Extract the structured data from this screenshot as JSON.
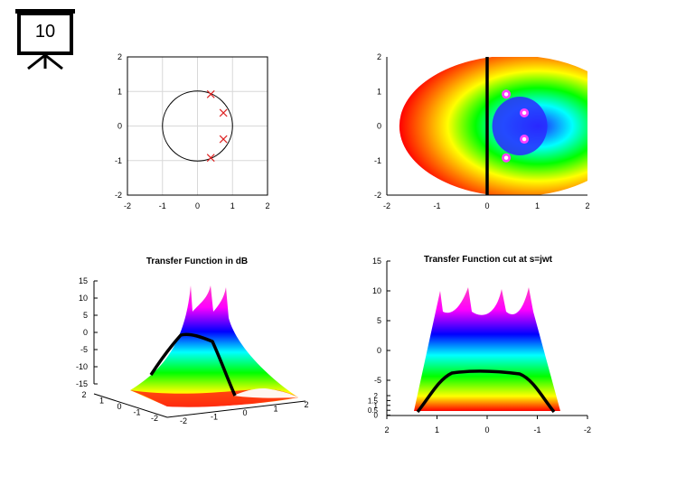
{
  "slide_number": "10",
  "chart_data": [
    {
      "type": "scatter",
      "panel": "pole-zero plot",
      "title": "",
      "xlim": [
        -2,
        2
      ],
      "ylim": [
        -2,
        2
      ],
      "xticks": [
        -2,
        -1,
        0,
        1,
        2
      ],
      "yticks": [
        -2,
        -1,
        0,
        1,
        2
      ],
      "grid": true,
      "unit_circle_radius": 1,
      "poles": [
        {
          "x": 0.38,
          "y": 0.92
        },
        {
          "x": 0.74,
          "y": 0.38
        },
        {
          "x": 0.74,
          "y": -0.38
        },
        {
          "x": 0.38,
          "y": -0.92
        }
      ],
      "marker": "x",
      "marker_color": "#dd2222"
    },
    {
      "type": "heatmap",
      "panel": "magnitude map (top view)",
      "title": "",
      "xlim": [
        -2,
        2
      ],
      "ylim": [
        -2,
        2
      ],
      "xticks": [
        -2,
        -1,
        0,
        1,
        2
      ],
      "yticks": [
        -2,
        -1,
        0,
        1,
        2
      ],
      "colormap": "hsv",
      "peaks": [
        {
          "x": 0.38,
          "y": 0.92
        },
        {
          "x": 0.74,
          "y": 0.38
        },
        {
          "x": 0.74,
          "y": -0.38
        },
        {
          "x": 0.38,
          "y": -0.92
        }
      ],
      "cut_line_x": 0
    },
    {
      "type": "area",
      "panel": "3d surface",
      "title": "Transfer Function in dB",
      "zticks": [
        15,
        10,
        5,
        0,
        -5,
        -10,
        -15
      ],
      "xticks": [
        -2,
        -1,
        0,
        1,
        2
      ],
      "yticks": [
        2,
        1,
        0,
        -1,
        -2
      ],
      "colormap": "hsv"
    },
    {
      "type": "line",
      "panel": "cut along s = jwt",
      "title": "Transfer Function cut at s=jwt",
      "yticks": [
        15,
        10,
        5,
        0,
        -5
      ],
      "depth_ticks": [
        2,
        1.5,
        1,
        0.5,
        0
      ],
      "xticks": [
        2,
        1,
        0,
        -1,
        -2
      ],
      "colormap": "hsv"
    }
  ]
}
